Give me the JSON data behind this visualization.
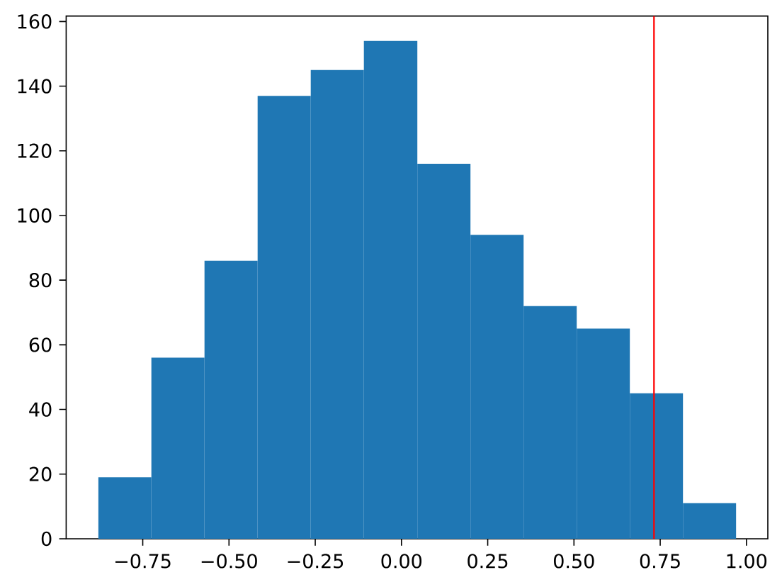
{
  "chart_data": {
    "type": "histogram",
    "bins": [
      -0.879,
      -0.725,
      -0.571,
      -0.417,
      -0.263,
      -0.109,
      0.046,
      0.2,
      0.354,
      0.508,
      0.662,
      0.816,
      0.97
    ],
    "values": [
      19,
      56,
      86,
      137,
      145,
      154,
      116,
      94,
      72,
      65,
      45,
      11
    ],
    "color": "#1f77b4",
    "xlim": [
      -0.972,
      1.062
    ],
    "ylim": [
      0,
      161.7
    ],
    "xticks": [
      {
        "value": -0.75,
        "label": "−0.75"
      },
      {
        "value": -0.5,
        "label": "−0.50"
      },
      {
        "value": -0.25,
        "label": "−0.25"
      },
      {
        "value": 0,
        "label": "0.00"
      },
      {
        "value": 0.25,
        "label": "0.25"
      },
      {
        "value": 0.5,
        "label": "0.50"
      },
      {
        "value": 0.75,
        "label": "0.75"
      },
      {
        "value": 1,
        "label": "1.00"
      }
    ],
    "yticks": [
      0,
      20,
      40,
      60,
      80,
      100,
      120,
      140,
      160
    ],
    "ref_lines": [
      {
        "axis": "x",
        "value": 0.732,
        "color": "#ff0000",
        "line_style": "solid"
      }
    ],
    "grid": false
  }
}
